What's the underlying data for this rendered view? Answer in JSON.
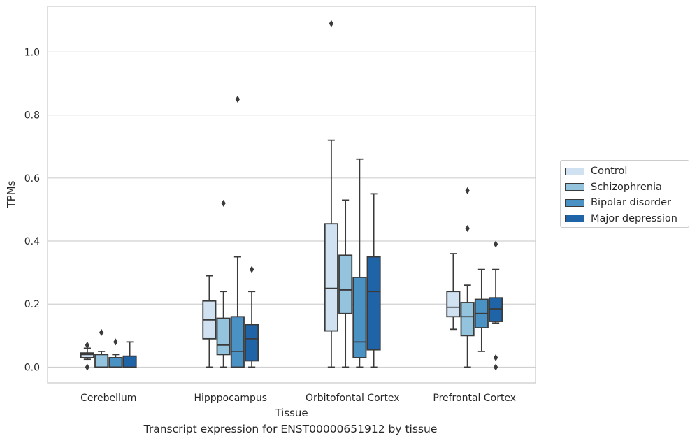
{
  "caption": "Transcript expression for ENST00000651912 by tissue",
  "colors": {
    "Control": "#d0e2f1",
    "Schizophrenia": "#94c3de",
    "Bipolar disorder": "#4a91c4",
    "Major depression": "#2064a8",
    "line": "#3a3a3a",
    "grid": "#d0d0d0"
  },
  "chart_data": {
    "type": "box",
    "xlabel": "Tissue",
    "ylabel": "TPMs",
    "ylim": [
      -0.05,
      1.145
    ],
    "yticks": [
      "0.0",
      "0.2",
      "0.4",
      "0.6",
      "0.8",
      "1.0"
    ],
    "grid": true,
    "legend_position": "right",
    "categories": [
      "Cerebellum",
      "Hipppocampus",
      "Orbitofontal Cortex",
      "Prefrontal Cortex"
    ],
    "series": [
      {
        "name": "Control",
        "boxes": [
          {
            "whislo": 0.025,
            "q1": 0.03,
            "med": 0.04,
            "q3": 0.045,
            "whishi": 0.06,
            "fliers": [
              0.07,
              0.0
            ]
          },
          {
            "whislo": 0.0,
            "q1": 0.09,
            "med": 0.15,
            "q3": 0.21,
            "whishi": 0.29,
            "fliers": []
          },
          {
            "whislo": 0.0,
            "q1": 0.115,
            "med": 0.25,
            "q3": 0.455,
            "whishi": 0.72,
            "fliers": [
              1.09
            ]
          },
          {
            "whislo": 0.12,
            "q1": 0.16,
            "med": 0.19,
            "q3": 0.24,
            "whishi": 0.36,
            "fliers": []
          }
        ]
      },
      {
        "name": "Schizophrenia",
        "boxes": [
          {
            "whislo": 0.0,
            "q1": 0.0,
            "med": 0.0,
            "q3": 0.04,
            "whishi": 0.05,
            "fliers": [
              0.11
            ]
          },
          {
            "whislo": 0.0,
            "q1": 0.04,
            "med": 0.07,
            "q3": 0.155,
            "whishi": 0.24,
            "fliers": [
              0.52
            ]
          },
          {
            "whislo": 0.0,
            "q1": 0.17,
            "med": 0.245,
            "q3": 0.355,
            "whishi": 0.53,
            "fliers": []
          },
          {
            "whislo": 0.0,
            "q1": 0.1,
            "med": 0.16,
            "q3": 0.205,
            "whishi": 0.26,
            "fliers": [
              0.56,
              0.44
            ]
          }
        ]
      },
      {
        "name": "Bipolar disorder",
        "boxes": [
          {
            "whislo": 0.0,
            "q1": 0.0,
            "med": 0.0,
            "q3": 0.03,
            "whishi": 0.04,
            "fliers": [
              0.08
            ]
          },
          {
            "whislo": 0.0,
            "q1": 0.0,
            "med": 0.05,
            "q3": 0.16,
            "whishi": 0.35,
            "fliers": [
              0.85
            ]
          },
          {
            "whislo": 0.0,
            "q1": 0.03,
            "med": 0.08,
            "q3": 0.285,
            "whishi": 0.66,
            "fliers": []
          },
          {
            "whislo": 0.05,
            "q1": 0.125,
            "med": 0.17,
            "q3": 0.215,
            "whishi": 0.31,
            "fliers": []
          }
        ]
      },
      {
        "name": "Major depression",
        "boxes": [
          {
            "whislo": 0.0,
            "q1": 0.0,
            "med": 0.0,
            "q3": 0.035,
            "whishi": 0.08,
            "fliers": []
          },
          {
            "whislo": 0.0,
            "q1": 0.02,
            "med": 0.09,
            "q3": 0.135,
            "whishi": 0.24,
            "fliers": [
              0.31
            ]
          },
          {
            "whislo": 0.0,
            "q1": 0.055,
            "med": 0.24,
            "q3": 0.35,
            "whishi": 0.55,
            "fliers": []
          },
          {
            "whislo": 0.14,
            "q1": 0.145,
            "med": 0.185,
            "q3": 0.22,
            "whishi": 0.31,
            "fliers": [
              0.39,
              0.03,
              0.0
            ]
          }
        ]
      }
    ]
  }
}
